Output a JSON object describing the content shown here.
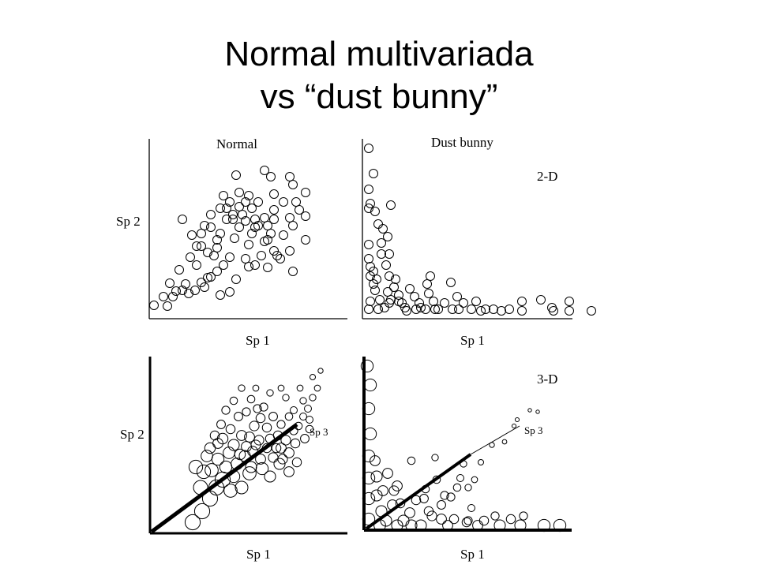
{
  "slide": {
    "title_line1": "Normal multivariada",
    "title_line2": "vs “dust bunny”"
  },
  "chart_data": [
    {
      "type": "scatter",
      "panel": "top-left",
      "title": "Normal",
      "xlabel": "Sp 1",
      "ylabel": "Sp 2",
      "points": [
        [
          2,
          9
        ],
        [
          14,
          20
        ],
        [
          22,
          37
        ],
        [
          19,
          8
        ],
        [
          26,
          20
        ],
        [
          30,
          27
        ],
        [
          38,
          28
        ],
        [
          42,
          36
        ],
        [
          46,
          24
        ],
        [
          54,
          28
        ],
        [
          62,
          38
        ],
        [
          66,
          32
        ],
        [
          74,
          45
        ],
        [
          86,
          22
        ],
        [
          98,
          26
        ],
        [
          82,
          52
        ],
        [
          106,
          42
        ],
        [
          122,
          58
        ],
        [
          118,
          68
        ],
        [
          146,
          57
        ],
        [
          162,
          68
        ],
        [
          178,
          52
        ],
        [
          158,
          72
        ],
        [
          166,
          98
        ],
        [
          178,
          110
        ],
        [
          194,
          92
        ],
        [
          194,
          122
        ],
        [
          174,
          78
        ],
        [
          154,
          78
        ],
        [
          142,
          90
        ],
        [
          138,
          72
        ],
        [
          130,
          60
        ],
        [
          126,
          100
        ],
        [
          110,
          108
        ],
        [
          104,
          94
        ],
        [
          98,
          70
        ],
        [
          90,
          60
        ],
        [
          82,
          82
        ],
        [
          78,
          72
        ],
        [
          70,
          44
        ],
        [
          56,
          60
        ],
        [
          56,
          84
        ],
        [
          48,
          70
        ],
        [
          34,
          54
        ],
        [
          38,
          118
        ],
        [
          50,
          98
        ],
        [
          62,
          100
        ],
        [
          66,
          110
        ],
        [
          70,
          76
        ],
        [
          82,
          92
        ],
        [
          86,
          100
        ],
        [
          94,
          118
        ],
        [
          94,
          132
        ],
        [
          98,
          140
        ],
        [
          110,
          134
        ],
        [
          114,
          124
        ],
        [
          118,
          116
        ],
        [
          126,
          132
        ],
        [
          130,
          118
        ],
        [
          134,
          110
        ],
        [
          134,
          140
        ],
        [
          142,
          120
        ],
        [
          146,
          110
        ],
        [
          146,
          92
        ],
        [
          150,
          100
        ],
        [
          154,
          118
        ],
        [
          154,
          130
        ],
        [
          166,
          140
        ],
        [
          174,
          120
        ],
        [
          182,
          140
        ],
        [
          186,
          130
        ],
        [
          194,
          152
        ],
        [
          178,
          162
        ],
        [
          154,
          150
        ],
        [
          142,
          180
        ],
        [
          106,
          174
        ],
        [
          150,
          172
        ],
        [
          174,
          172
        ],
        [
          118,
          140
        ],
        [
          122,
          148
        ],
        [
          110,
          152
        ],
        [
          102,
          124
        ],
        [
          90,
          148
        ],
        [
          86,
          132
        ],
        [
          74,
          124
        ],
        [
          74,
          108
        ],
        [
          62,
          84
        ],
        [
          102,
          118
        ],
        [
          122,
          86
        ],
        [
          130,
          108
        ]
      ]
    },
    {
      "type": "scatter",
      "panel": "top-right",
      "title": "Dust bunny",
      "annotation": "2-D",
      "xlabel": "Sp 1",
      "points": [
        [
          4,
          208
        ],
        [
          10,
          176
        ],
        [
          4,
          156
        ],
        [
          6,
          138
        ],
        [
          4,
          132
        ],
        [
          12,
          128
        ],
        [
          32,
          136
        ],
        [
          16,
          112
        ],
        [
          22,
          106
        ],
        [
          28,
          96
        ],
        [
          30,
          74
        ],
        [
          4,
          86
        ],
        [
          4,
          68
        ],
        [
          6,
          58
        ],
        [
          6,
          46
        ],
        [
          6,
          14
        ],
        [
          12,
          28
        ],
        [
          14,
          42
        ],
        [
          26,
          60
        ],
        [
          30,
          46
        ],
        [
          36,
          32
        ],
        [
          38,
          42
        ],
        [
          42,
          22
        ],
        [
          32,
          16
        ],
        [
          24,
          6
        ],
        [
          50,
          6
        ],
        [
          42,
          14
        ],
        [
          52,
          2
        ],
        [
          56,
          30
        ],
        [
          62,
          20
        ],
        [
          68,
          12
        ],
        [
          78,
          36
        ],
        [
          82,
          46
        ],
        [
          80,
          24
        ],
        [
          86,
          14
        ],
        [
          92,
          4
        ],
        [
          108,
          38
        ],
        [
          116,
          20
        ],
        [
          118,
          4
        ],
        [
          134,
          4
        ],
        [
          146,
          2
        ],
        [
          162,
          4
        ],
        [
          172,
          2
        ],
        [
          182,
          4
        ],
        [
          198,
          2
        ],
        [
          222,
          16
        ],
        [
          236,
          6
        ],
        [
          258,
          2
        ],
        [
          286,
          2
        ],
        [
          16,
          4
        ],
        [
          28,
          26
        ],
        [
          46,
          12
        ],
        [
          64,
          4
        ],
        [
          76,
          4
        ],
        [
          100,
          12
        ],
        [
          110,
          4
        ],
        [
          124,
          12
        ],
        [
          140,
          14
        ],
        [
          152,
          4
        ],
        [
          198,
          14
        ],
        [
          258,
          14
        ],
        [
          10,
          36
        ],
        [
          18,
          16
        ],
        [
          70,
          6
        ],
        [
          88,
          4
        ],
        [
          238,
          2
        ],
        [
          4,
          4
        ],
        [
          10,
          52
        ],
        [
          20,
          74
        ],
        [
          20,
          88
        ],
        [
          30,
          12
        ]
      ]
    },
    {
      "type": "scatter",
      "panel": "bottom-left",
      "annotation": "Sp 3",
      "xlabel": "Sp 1",
      "ylabel": "Sp 2",
      "note": "3-D view; point size encodes depth along Sp 3",
      "points": [
        [
          48,
          6,
          3
        ],
        [
          60,
          20,
          3
        ],
        [
          70,
          36,
          3
        ],
        [
          78,
          50,
          3
        ],
        [
          86,
          60,
          3
        ],
        [
          96,
          46,
          2.6
        ],
        [
          110,
          50,
          2.5
        ],
        [
          120,
          68,
          2.6
        ],
        [
          136,
          74,
          2.4
        ],
        [
          146,
          64,
          2.2
        ],
        [
          158,
          80,
          2.2
        ],
        [
          160,
          100,
          2
        ],
        [
          170,
          94,
          2
        ],
        [
          166,
          110,
          1.9
        ],
        [
          178,
          106,
          1.8
        ],
        [
          190,
          112,
          1.7
        ],
        [
          196,
          124,
          1.5
        ],
        [
          194,
          150,
          1.4
        ],
        [
          200,
          164,
          1.3
        ],
        [
          206,
          176,
          1.2
        ],
        [
          188,
          160,
          1.3
        ],
        [
          176,
          148,
          1.4
        ],
        [
          170,
          140,
          1.5
        ],
        [
          160,
          130,
          1.6
        ],
        [
          146,
          112,
          1.8
        ],
        [
          132,
          110,
          1.9
        ],
        [
          124,
          96,
          2
        ],
        [
          114,
          90,
          2.2
        ],
        [
          104,
          80,
          2.3
        ],
        [
          90,
          76,
          2.4
        ],
        [
          80,
          86,
          2.4
        ],
        [
          72,
          72,
          2.6
        ],
        [
          62,
          70,
          2.7
        ],
        [
          52,
          76,
          2.7
        ],
        [
          58,
          50,
          2.8
        ],
        [
          94,
          94,
          2.3
        ],
        [
          100,
          104,
          2.2
        ],
        [
          110,
          116,
          2
        ],
        [
          120,
          114,
          2
        ],
        [
          126,
          128,
          1.9
        ],
        [
          134,
          138,
          1.8
        ],
        [
          142,
          126,
          1.8
        ],
        [
          150,
          140,
          1.7
        ],
        [
          156,
          116,
          1.8
        ],
        [
          130,
          150,
          1.6
        ],
        [
          138,
          152,
          1.6
        ],
        [
          122,
          162,
          1.5
        ],
        [
          116,
          146,
          1.6
        ],
        [
          106,
          140,
          1.7
        ],
        [
          96,
          124,
          1.8
        ],
        [
          84,
          130,
          1.7
        ],
        [
          76,
          116,
          1.8
        ],
        [
          80,
          106,
          2
        ],
        [
          70,
          100,
          2.1
        ],
        [
          90,
          148,
          1.6
        ],
        [
          100,
          160,
          1.5
        ],
        [
          134,
          86,
          2
        ],
        [
          150,
          88,
          1.9
        ],
        [
          154,
          100,
          1.8
        ],
        [
          162,
          86,
          1.9
        ],
        [
          182,
          128,
          1.5
        ],
        [
          188,
          140,
          1.4
        ],
        [
          166,
          164,
          1.3
        ],
        [
          184,
          176,
          1.2
        ],
        [
          200,
          190,
          1.1
        ],
        [
          210,
          198,
          1
        ],
        [
          176,
          122,
          1.6
        ],
        [
          142,
          100,
          1.8
        ],
        [
          128,
          104,
          1.9
        ],
        [
          86,
          112,
          2.1
        ],
        [
          116,
          102,
          2
        ],
        [
          108,
          92,
          2.1
        ],
        [
          122,
          76,
          2.2
        ],
        [
          100,
          64,
          2.4
        ],
        [
          66,
          90,
          2.3
        ],
        [
          170,
          70,
          2
        ],
        [
          180,
          82,
          1.8
        ],
        [
          196,
          136,
          1.4
        ],
        [
          160,
          176,
          1.2
        ],
        [
          146,
          170,
          1.3
        ],
        [
          128,
          176,
          1.2
        ],
        [
          110,
          176,
          1.3
        ]
      ]
    },
    {
      "type": "scatter",
      "panel": "bottom-right",
      "annotation": "3-D",
      "xlabel": "Sp 1",
      "axis_label": "Sp 3",
      "note": "3-D view; point size encodes depth along Sp 3",
      "points": [
        [
          2,
          204,
          2.4
        ],
        [
          6,
          180,
          2.4
        ],
        [
          4,
          150,
          2.4
        ],
        [
          6,
          118,
          2.4
        ],
        [
          4,
          90,
          2.4
        ],
        [
          4,
          62,
          2.4
        ],
        [
          4,
          36,
          2.4
        ],
        [
          4,
          10,
          2.4
        ],
        [
          14,
          64,
          2.2
        ],
        [
          28,
          68,
          2
        ],
        [
          40,
          52,
          2
        ],
        [
          34,
          28,
          2
        ],
        [
          20,
          20,
          2.2
        ],
        [
          14,
          40,
          2.2
        ],
        [
          26,
          8,
          2.2
        ],
        [
          48,
          8,
          2.2
        ],
        [
          56,
          18,
          2
        ],
        [
          64,
          34,
          1.8
        ],
        [
          74,
          36,
          1.7
        ],
        [
          80,
          20,
          1.8
        ],
        [
          96,
          10,
          2
        ],
        [
          104,
          2,
          2
        ],
        [
          70,
          2,
          2.2
        ],
        [
          84,
          14,
          1.9
        ],
        [
          96,
          28,
          1.7
        ],
        [
          108,
          38,
          1.6
        ],
        [
          116,
          50,
          1.5
        ],
        [
          124,
          80,
          1.3
        ],
        [
          146,
          82,
          1.1
        ],
        [
          160,
          104,
          1
        ],
        [
          176,
          108,
          0.9
        ],
        [
          192,
          136,
          0.8
        ],
        [
          208,
          148,
          0.7
        ],
        [
          218,
          146,
          0.7
        ],
        [
          188,
          128,
          0.8
        ],
        [
          58,
          84,
          1.5
        ],
        [
          76,
          48,
          1.5
        ],
        [
          90,
          60,
          1.5
        ],
        [
          134,
          24,
          1.4
        ],
        [
          128,
          6,
          1.8
        ],
        [
          142,
          2,
          2
        ],
        [
          170,
          2,
          2.2
        ],
        [
          196,
          2,
          2.2
        ],
        [
          130,
          8,
          1.6
        ],
        [
          150,
          8,
          1.8
        ],
        [
          164,
          14,
          1.6
        ],
        [
          184,
          10,
          1.8
        ],
        [
          226,
          2,
          2.4
        ],
        [
          246,
          2,
          2.4
        ],
        [
          18,
          2,
          2.3
        ],
        [
          40,
          2,
          2.2
        ],
        [
          58,
          2,
          2.2
        ],
        [
          100,
          40,
          1.6
        ],
        [
          120,
          62,
          1.4
        ],
        [
          138,
          60,
          1.2
        ],
        [
          88,
          88,
          1.3
        ],
        [
          44,
          30,
          1.8
        ],
        [
          200,
          14,
          1.6
        ],
        [
          22,
          46,
          2
        ],
        [
          12,
          84,
          2
        ],
        [
          36,
          46,
          1.9
        ],
        [
          112,
          10,
          1.8
        ],
        [
          130,
          50,
          1.3
        ]
      ]
    }
  ]
}
